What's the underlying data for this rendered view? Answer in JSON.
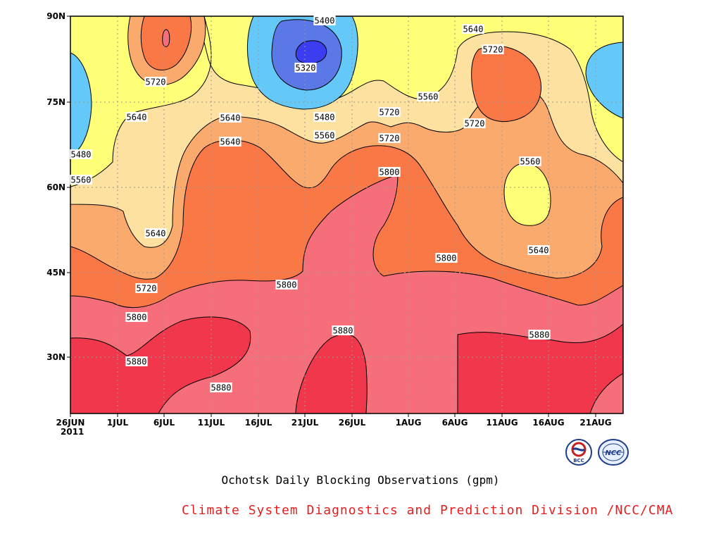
{
  "chart_data": {
    "type": "contour",
    "title": "Ochotsk Daily Blocking Observations (gpm)",
    "credit": "Climate System Diagnostics and Prediction Division /NCC/CMA",
    "x_ticks": [
      "26JUN\n2011",
      "1JUL",
      "6JUL",
      "11JUL",
      "16JUL",
      "21JUL",
      "26JUL",
      "1AUG",
      "6AUG",
      "11AUG",
      "16AUG",
      "21AUG"
    ],
    "y_ticks": [
      "30N",
      "45N",
      "60N",
      "75N",
      "90N"
    ],
    "xlim": [
      "26JUN2011",
      "25AUG2011"
    ],
    "ylim": [
      "20N",
      "90N"
    ],
    "levels": [
      5320,
      5400,
      5480,
      5560,
      5640,
      5720,
      5800,
      5880
    ],
    "fill_colors": {
      "below_5320": "#3c3cf0",
      "5320_5400": "#5a78e6",
      "5400_5480": "#64c8f8",
      "5480_5560": "#ffff78",
      "5560_5640": "#fde1a0",
      "5640_5720": "#fbaa6e",
      "5720_5800": "#fa7846",
      "5800_5880": "#f56e7a",
      "above_5880": "#f0374b"
    },
    "contour_labels": [
      "5400",
      "5320",
      "5640",
      "5720",
      "5720",
      "5640",
      "5560",
      "5640",
      "5480",
      "5560",
      "5720",
      "5640",
      "5720",
      "5480",
      "5560",
      "5560",
      "5800",
      "5640",
      "5640",
      "5720",
      "5800",
      "5800",
      "5720",
      "5800",
      "5880",
      "5880",
      "5880",
      "5880"
    ]
  },
  "logos": {
    "left": "BCC",
    "right": "NCC"
  }
}
